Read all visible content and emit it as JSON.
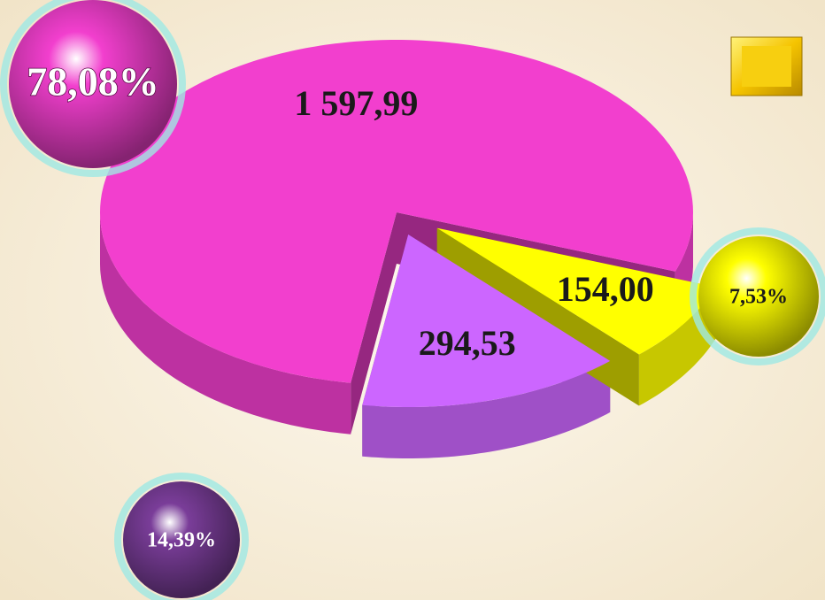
{
  "chart_data": {
    "type": "pie",
    "values": [
      1597.99,
      294.53,
      154.0
    ],
    "value_labels": [
      "1 597,99",
      "294,53",
      "154,00"
    ],
    "percents": [
      78.08,
      14.39,
      7.53
    ],
    "percent_labels": [
      "78,08%",
      "14,39%",
      "7,53%"
    ],
    "colors": [
      "#f23fce",
      "#cc66ff",
      "#ffff00"
    ]
  }
}
